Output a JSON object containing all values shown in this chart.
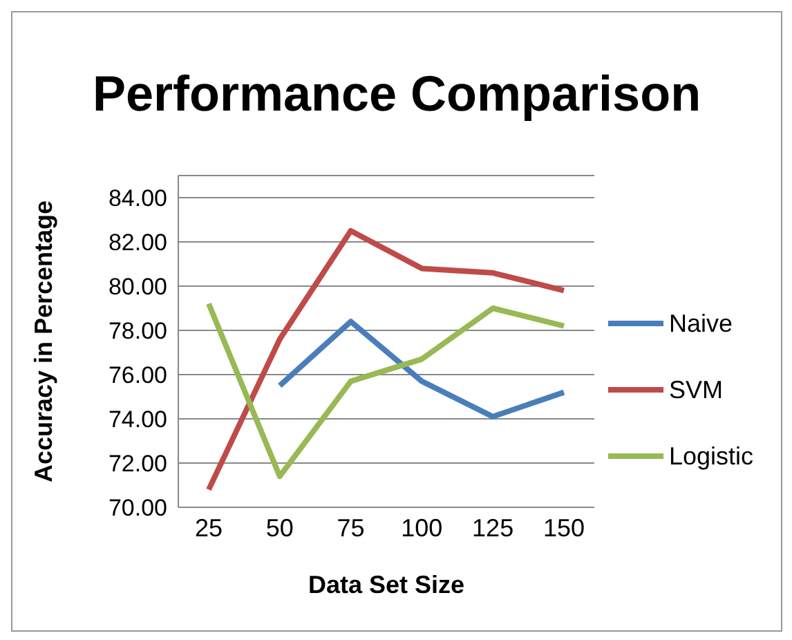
{
  "chart_data": {
    "type": "line",
    "title": "Performance Comparison",
    "xlabel": "Data Set Size",
    "ylabel": "Accuracy in Percentage",
    "categories": [
      "25",
      "50",
      "75",
      "100",
      "125",
      "150"
    ],
    "series": [
      {
        "name": "Naive",
        "color": "#4a7ebb",
        "values": [
          null,
          75.5,
          78.4,
          75.7,
          74.1,
          75.2
        ]
      },
      {
        "name": "SVM",
        "color": "#be4b48",
        "values": [
          70.8,
          77.6,
          82.5,
          80.8,
          80.6,
          79.8
        ]
      },
      {
        "name": "Logistic",
        "color": "#98b954",
        "values": [
          79.2,
          71.4,
          75.7,
          76.7,
          79.0,
          78.2
        ]
      }
    ],
    "ylim": [
      70,
      85
    ],
    "yticks": [
      {
        "value": 70,
        "label": "70.00"
      },
      {
        "value": 72,
        "label": "72.00"
      },
      {
        "value": 74,
        "label": "74.00"
      },
      {
        "value": 76,
        "label": "76.00"
      },
      {
        "value": 78,
        "label": "78.00"
      },
      {
        "value": 80,
        "label": "80.00"
      },
      {
        "value": 82,
        "label": "82.00"
      },
      {
        "value": 84,
        "label": "84.00"
      }
    ],
    "grid": "y",
    "legend": "right",
    "marker": "none",
    "line_style": "solid"
  }
}
